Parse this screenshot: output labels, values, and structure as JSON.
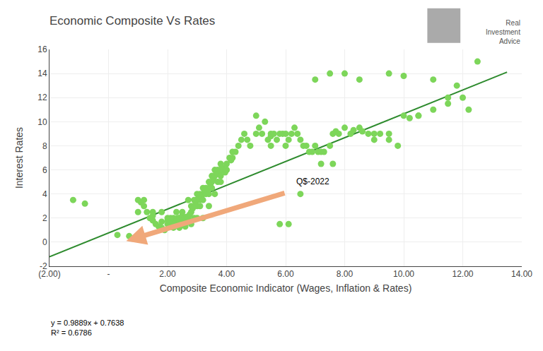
{
  "chart_data": {
    "type": "scatter",
    "title": "Economic Composite Vs Rates",
    "xlabel": "Composite Economic Indicator (Wages, Inflation & Rates)",
    "ylabel": "Interest Rates",
    "xlim": [
      -2,
      14
    ],
    "ylim": [
      -2,
      16
    ],
    "xticks": [
      {
        "value": -2.0,
        "label": "(2.00)"
      },
      {
        "value": 0.0,
        "label": "-"
      },
      {
        "value": 2.0,
        "label": "2.00"
      },
      {
        "value": 4.0,
        "label": "4.00"
      },
      {
        "value": 6.0,
        "label": "6.00"
      },
      {
        "value": 8.0,
        "label": "8.00"
      },
      {
        "value": 10.0,
        "label": "10.00"
      },
      {
        "value": 12.0,
        "label": "12.00"
      },
      {
        "value": 14.0,
        "label": "14.00"
      }
    ],
    "yticks": [
      -2,
      0,
      2,
      4,
      6,
      8,
      10,
      12,
      14,
      16
    ],
    "grid": true,
    "series": [
      {
        "type": "scatter",
        "color": "#7dd65a",
        "x": [
          -1.2,
          -0.8,
          0.3,
          0.7,
          0.9,
          1.0,
          1.1,
          1.2,
          1.3,
          1.4,
          1.5,
          1.5,
          1.6,
          1.7,
          1.8,
          1.8,
          1.9,
          2.0,
          2.0,
          2.0,
          2.1,
          2.1,
          2.1,
          2.15,
          2.2,
          2.2,
          2.2,
          2.25,
          2.3,
          2.3,
          2.3,
          2.35,
          2.4,
          2.4,
          2.5,
          2.5,
          2.5,
          2.5,
          2.6,
          2.6,
          2.65,
          2.7,
          2.7,
          2.75,
          2.8,
          2.8,
          2.85,
          2.9,
          2.9,
          2.95,
          3.0,
          3.0,
          3.0,
          3.05,
          3.1,
          3.1,
          3.1,
          3.15,
          3.2,
          3.2,
          3.2,
          3.25,
          3.3,
          3.3,
          3.35,
          3.4,
          3.4,
          3.45,
          3.5,
          3.5,
          3.5,
          3.55,
          3.6,
          3.6,
          3.65,
          3.7,
          3.7,
          3.75,
          3.8,
          3.8,
          3.85,
          3.9,
          3.95,
          4.0,
          4.0,
          4.1,
          4.15,
          4.2,
          4.3,
          4.4,
          4.5,
          4.6,
          4.7,
          4.8,
          5.0,
          5.1,
          5.2,
          5.3,
          5.4,
          5.5,
          5.5,
          5.6,
          5.7,
          5.8,
          5.9,
          6.0,
          6.1,
          6.2,
          6.3,
          6.4,
          6.5,
          6.5,
          6.6,
          6.7,
          6.8,
          6.9,
          7.0,
          7.1,
          7.2,
          7.3,
          7.5,
          7.6,
          7.7,
          7.8,
          8.0,
          8.2,
          8.3,
          8.5,
          8.6,
          8.8,
          9.0,
          9.2,
          9.5,
          9.8,
          10.0,
          10.2,
          10.5,
          11.0,
          11.5,
          12.0,
          12.2,
          1.0,
          1.2,
          1.5,
          1.8,
          2.2,
          2.4,
          2.6,
          2.8,
          3.0,
          3.2,
          3.4,
          3.6,
          3.8,
          4.0,
          4.2,
          5.0,
          5.5,
          6.0,
          7.0,
          7.5,
          8.0,
          8.5,
          9.5,
          10.0,
          11.0,
          11.8,
          5.8,
          6.1,
          7.2,
          7.6,
          9.0,
          9.5,
          10.5,
          11.5,
          12.5
        ],
        "values": [
          3.5,
          3.2,
          0.6,
          0.5,
          0.4,
          3.5,
          3.3,
          3.0,
          2.5,
          2.0,
          1.8,
          2.2,
          1.5,
          1.3,
          1.2,
          1.7,
          1.0,
          2.0,
          1.5,
          1.8,
          2.0,
          1.3,
          1.6,
          1.4,
          1.5,
          2.0,
          1.2,
          1.6,
          1.5,
          2.5,
          1.8,
          2.0,
          2.0,
          1.8,
          2.2,
          1.5,
          1.8,
          2.5,
          2.0,
          1.8,
          2.1,
          3.5,
          2.0,
          2.3,
          2.5,
          3.0,
          2.8,
          3.5,
          2.0,
          3.2,
          4.0,
          3.5,
          3.0,
          3.7,
          4.0,
          3.5,
          3.0,
          3.8,
          4.5,
          4.0,
          3.5,
          4.2,
          4.0,
          4.5,
          4.3,
          4.0,
          5.0,
          4.8,
          5.5,
          4.5,
          5.0,
          5.2,
          5.5,
          6.0,
          5.8,
          6.0,
          5.0,
          5.7,
          6.5,
          5.5,
          6.2,
          6.0,
          5.8,
          6.5,
          6.0,
          7.0,
          6.8,
          7.5,
          7.5,
          8.0,
          8.5,
          9.0,
          8.5,
          8.0,
          10.5,
          9.5,
          9.0,
          10.0,
          8.5,
          9.0,
          8.8,
          9.0,
          8.5,
          9.0,
          9.0,
          8.0,
          8.5,
          9.0,
          9.5,
          9.0,
          4.0,
          8.5,
          8.0,
          8.0,
          7.5,
          7.5,
          8.0,
          7.5,
          7.5,
          7.5,
          8.0,
          9.0,
          9.2,
          9.0,
          9.5,
          9.0,
          9.3,
          9.5,
          9.2,
          9.0,
          9.0,
          9.0,
          8.5,
          8.0,
          10.5,
          10.3,
          10.5,
          11.0,
          11.5,
          12.0,
          11.0,
          2.5,
          3.5,
          2.5,
          2.5,
          1.5,
          1.2,
          1.3,
          1.5,
          2.0,
          2.0,
          3.0,
          4.0,
          5.0,
          6.0,
          7.0,
          9.0,
          8.0,
          9.0,
          13.5,
          14.0,
          14.0,
          13.5,
          14.0,
          13.8,
          13.5,
          13.0,
          1.5,
          1.5,
          6.5,
          6.5,
          8.5,
          9.0,
          10.5,
          12.0,
          15.0
        ]
      },
      {
        "type": "line",
        "color": "#2e8b2e",
        "x": [
          -2,
          13.5
        ],
        "values": [
          -1.214,
          14.11395
        ]
      }
    ],
    "annotations": [
      {
        "text": "Q$-2022",
        "x": 6.3,
        "y": 4.5
      }
    ],
    "arrow": {
      "x": 0.6,
      "y": 0.1,
      "tail_x": 6.0,
      "tail_y": 4.1,
      "color": "#f0a87a"
    },
    "notes": [
      "y = 0.9889x + 0.7638",
      "R² = 0.6786"
    ],
    "logo": [
      "Real",
      "Investment",
      "Advice"
    ]
  }
}
